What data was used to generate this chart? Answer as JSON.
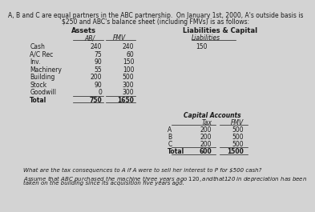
{
  "title_line1": "A, B and C are equal partners in the ABC partnership.  On January 1",
  "title_sup": "st",
  "title_line1b": ", 2000, A's outside basis is",
  "title_line2": "$250 and ABC's balance sheet (including FMVs) is as follows:",
  "assets_header": "Assets",
  "liabilities_header": "Liabilities & Capital",
  "ab_header": "AB/",
  "fmv_header": "FMV",
  "liabilities_sub": "Liabilities",
  "asset_rows": [
    [
      "Cash",
      "240",
      "240"
    ],
    [
      "A/C Rec",
      "75",
      "60"
    ],
    [
      "Inv.",
      "90",
      "150"
    ],
    [
      "Machinery",
      "55",
      "100"
    ],
    [
      "Building",
      "200",
      "500"
    ],
    [
      "Stock",
      "90",
      "300"
    ],
    [
      "Goodwill",
      "0",
      "300"
    ],
    [
      "Total",
      "750",
      "1650"
    ]
  ],
  "liabilities_value": "150",
  "capital_header": "Capital Accounts",
  "tax_header": "Tax",
  "fmv_header2": "FMV",
  "capital_rows": [
    [
      "A",
      "200",
      "500"
    ],
    [
      "B",
      "200",
      "500"
    ],
    [
      "C",
      "200",
      "500"
    ],
    [
      "Total",
      "600",
      "1500"
    ]
  ],
  "q1": "What are the tax consequences to A if A were to sell her interest to P for $500 cash?",
  "q2": "Assume that ABC purchased the machine three years ago $120, and that $120 in depreciation has been",
  "q3": "taken on the building since its acquisition five years ago.",
  "bg_color": "#d3d3d3",
  "text_color": "#1a1a1a",
  "fs": 5.5,
  "hfs": 6.0
}
